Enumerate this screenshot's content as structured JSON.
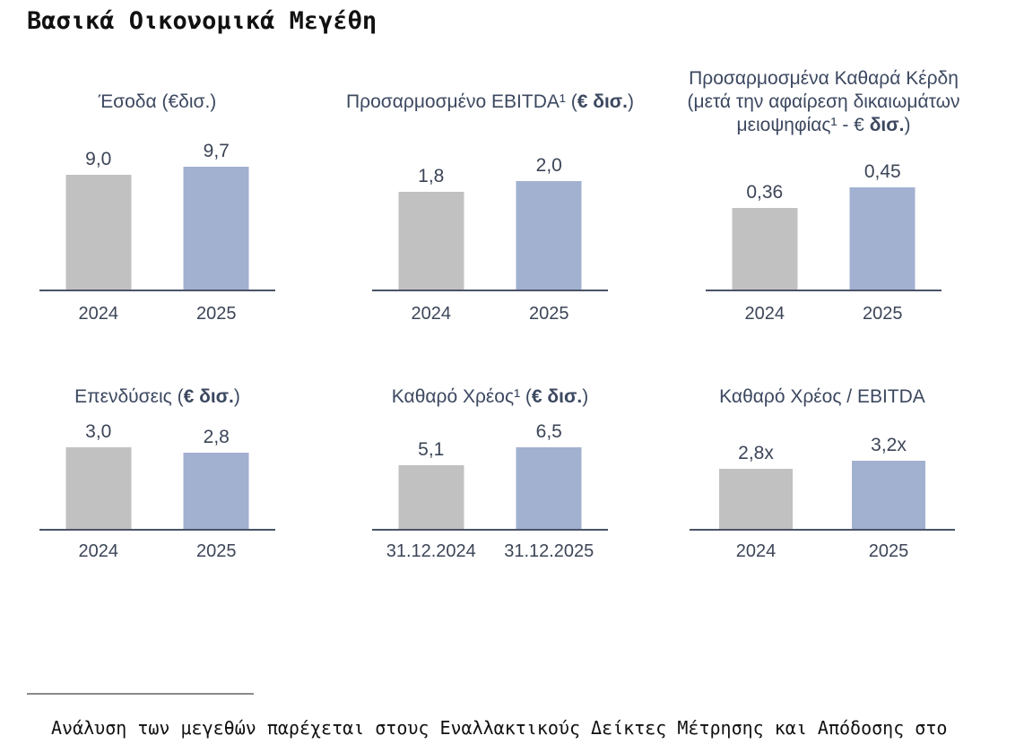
{
  "page": {
    "title": "Βασικά Οικονομικά Μεγέθη",
    "footnote": "Ανάλυση των μεγεθών παρέχεται στους Εναλλακτικούς Δείκτες Μέτρησης και Απόδοσης στο"
  },
  "colors": {
    "bar_2024": "#c1c1c1",
    "bar_2025": "#a2b1d0",
    "text_navy": "#3c4557",
    "axis": "#4a5367"
  },
  "chart_data": [
    {
      "id": "revenue",
      "type": "bar",
      "title": "Έσοδα (€δισ.)",
      "title_lines": [
        [
          {
            "t": "Έσοδα (€δισ.)",
            "b": false
          }
        ]
      ],
      "categories": [
        "2024",
        "2025"
      ],
      "values": [
        9.0,
        9.7
      ],
      "value_labels": [
        "9,0",
        "9,7"
      ],
      "ylim": [
        0,
        12
      ],
      "series_colors": [
        "#c1c1c1",
        "#a2b1d0"
      ],
      "legend": "none",
      "grid": false
    },
    {
      "id": "adjusted-ebitda",
      "type": "bar",
      "title": "Προσαρμοσμένο EBITDA¹ (€ δισ.)",
      "title_lines": [
        [
          {
            "t": "Προσαρμοσμένο EBITDA¹ (",
            "b": false
          },
          {
            "t": "€ δισ.",
            "b": true
          },
          {
            "t": ")",
            "b": false
          }
        ]
      ],
      "categories": [
        "2024",
        "2025"
      ],
      "values": [
        1.8,
        2.0
      ],
      "value_labels": [
        "1,8",
        "2,0"
      ],
      "ylim": [
        0,
        2.8
      ],
      "series_colors": [
        "#c1c1c1",
        "#a2b1d0"
      ],
      "legend": "none",
      "grid": false
    },
    {
      "id": "adjusted-net-profit",
      "type": "bar",
      "title": "Προσαρμοσμένα Καθαρά Κέρδη (μετά την αφαίρεση δικαιωμάτων μειοψηφίας¹ - € δισ.)",
      "title_lines": [
        [
          {
            "t": "Προσαρμοσμένα Καθαρά Κέρδη",
            "b": false
          }
        ],
        [
          {
            "t": "(μετά την αφαίρεση δικαιωμάτων",
            "b": false
          }
        ],
        [
          {
            "t": "μειοψηφίας¹ - € ",
            "b": false
          },
          {
            "t": "δισ.",
            "b": true
          },
          {
            "t": ")",
            "b": false
          }
        ]
      ],
      "categories": [
        "2024",
        "2025"
      ],
      "values": [
        0.36,
        0.45
      ],
      "value_labels": [
        "0,36",
        "0,45"
      ],
      "ylim": [
        0,
        0.67
      ],
      "series_colors": [
        "#c1c1c1",
        "#a2b1d0"
      ],
      "legend": "none",
      "grid": false
    },
    {
      "id": "investments",
      "type": "bar",
      "title": "Επενδύσεις (€ δισ.)",
      "title_lines": [
        [
          {
            "t": "Επενδύσεις (",
            "b": false
          },
          {
            "t": "€ δισ.",
            "b": true
          },
          {
            "t": ")",
            "b": false
          }
        ]
      ],
      "categories": [
        "2024",
        "2025"
      ],
      "values": [
        3.0,
        2.8
      ],
      "value_labels": [
        "3,0",
        "2,8"
      ],
      "ylim": [
        0,
        4.1
      ],
      "series_colors": [
        "#c1c1c1",
        "#a2b1d0"
      ],
      "legend": "none",
      "grid": false
    },
    {
      "id": "net-debt",
      "type": "bar",
      "title": "Καθαρό Χρέος¹ (€ δισ.)",
      "title_lines": [
        [
          {
            "t": "Καθαρό Χρέος¹ (",
            "b": false
          },
          {
            "t": "€ δισ.",
            "b": true
          },
          {
            "t": ")",
            "b": false
          }
        ]
      ],
      "categories": [
        "31.12.2024",
        "31.12.2025"
      ],
      "values": [
        5.1,
        6.5
      ],
      "value_labels": [
        "5,1",
        "6,5"
      ],
      "ylim": [
        0,
        8.9
      ],
      "series_colors": [
        "#c1c1c1",
        "#a2b1d0"
      ],
      "legend": "none",
      "grid": false
    },
    {
      "id": "net-debt-to-ebitda",
      "type": "bar",
      "title": "Καθαρό Χρέος / EBITDA",
      "title_lines": [
        [
          {
            "t": "Καθαρό Χρέος / EBITDA",
            "b": false
          }
        ]
      ],
      "categories": [
        "2024",
        "2025"
      ],
      "values": [
        2.8,
        3.2
      ],
      "value_labels": [
        "2,8x",
        "3,2x"
      ],
      "ylim": [
        0,
        5.2
      ],
      "series_colors": [
        "#c1c1c1",
        "#a2b1d0"
      ],
      "legend": "none",
      "grid": false
    }
  ]
}
